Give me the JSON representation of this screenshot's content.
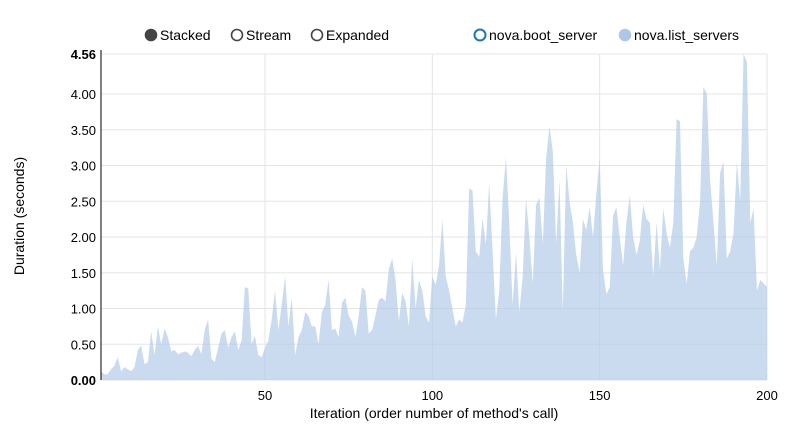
{
  "controls": [
    {
      "label": "Stacked",
      "selected": true
    },
    {
      "label": "Stream",
      "selected": false
    },
    {
      "label": "Expanded",
      "selected": false
    }
  ],
  "chart_data": {
    "type": "area",
    "xlabel": "Iteration (order number of method's call)",
    "ylabel": "Duration (seconds)",
    "xlim": [
      1,
      200
    ],
    "ylim": [
      0,
      4.56
    ],
    "xticks": [
      50,
      100,
      150,
      200
    ],
    "yticks": [
      "0.00",
      "0.50",
      "1.00",
      "1.50",
      "2.00",
      "2.50",
      "3.00",
      "3.50",
      "4.00",
      "4.56"
    ],
    "grid": true,
    "legend_position": "top-right",
    "series": [
      {
        "name": "nova.boot_server",
        "color": "#1f77b4",
        "disabled": true,
        "values": []
      },
      {
        "name": "nova.list_servers",
        "color": "#aec7e8",
        "values": [
          0.12,
          0.08,
          0.08,
          0.15,
          0.2,
          0.32,
          0.12,
          0.18,
          0.15,
          0.12,
          0.18,
          0.42,
          0.48,
          0.22,
          0.25,
          0.68,
          0.35,
          0.75,
          0.5,
          0.72,
          0.6,
          0.4,
          0.42,
          0.36,
          0.38,
          0.4,
          0.38,
          0.33,
          0.42,
          0.48,
          0.36,
          0.7,
          0.85,
          0.3,
          0.25,
          0.45,
          0.65,
          0.7,
          0.45,
          0.6,
          0.68,
          0.42,
          0.55,
          1.3,
          1.28,
          0.5,
          0.62,
          0.35,
          0.32,
          0.45,
          0.55,
          0.85,
          1.25,
          0.7,
          1.05,
          1.45,
          0.75,
          1.15,
          0.35,
          0.6,
          0.7,
          0.95,
          0.9,
          0.75,
          0.75,
          0.5,
          0.95,
          1.05,
          1.4,
          0.7,
          0.72,
          0.6,
          1.08,
          1.15,
          0.9,
          0.82,
          0.6,
          0.9,
          1.3,
          1.25,
          0.65,
          0.7,
          0.9,
          1.12,
          1.15,
          1.1,
          1.55,
          1.7,
          1.4,
          0.82,
          1.22,
          1.1,
          0.75,
          1.7,
          1.0,
          1.4,
          1.25,
          0.9,
          0.8,
          1.45,
          1.33,
          1.6,
          2.25,
          1.45,
          1.25,
          1.0,
          0.75,
          0.85,
          0.8,
          1.05,
          2.68,
          2.65,
          1.8,
          1.72,
          2.26,
          1.9,
          2.75,
          1.8,
          0.85,
          1.25,
          2.55,
          3.12,
          2.2,
          1.05,
          1.78,
          0.95,
          1.45,
          2.55,
          2.0,
          1.35,
          2.45,
          2.55,
          1.9,
          3.1,
          3.55,
          3.2,
          1.9,
          2.8,
          0.95,
          3.0,
          2.5,
          2.2,
          1.75,
          1.5,
          2.25,
          2.1,
          2.42,
          2.0,
          2.6,
          3.1,
          1.55,
          1.2,
          1.3,
          2.3,
          2.42,
          2.0,
          1.6,
          2.2,
          2.58,
          2.0,
          1.75,
          1.95,
          2.45,
          2.25,
          2.2,
          1.45,
          2.2,
          1.55,
          2.4,
          2.05,
          1.85,
          2.2,
          3.65,
          3.62,
          1.7,
          1.35,
          1.8,
          1.85,
          2.0,
          2.5,
          4.1,
          4.0,
          2.8,
          2.2,
          1.6,
          2.9,
          3.05,
          1.7,
          1.8,
          2.05,
          3.05,
          2.5,
          4.56,
          4.45,
          2.2,
          2.4,
          1.25,
          1.4,
          1.35,
          1.3
        ]
      }
    ]
  }
}
